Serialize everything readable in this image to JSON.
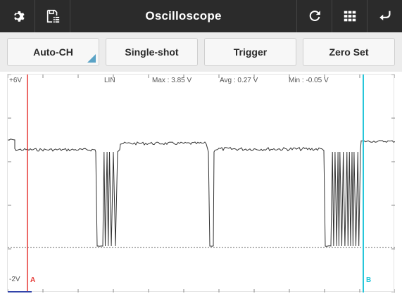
{
  "titlebar": {
    "title": "Oscilloscope",
    "left_icons": [
      "gear-icon",
      "save-list-icon"
    ],
    "right_icons": [
      "refresh-icon",
      "grid-icon",
      "back-arrow-icon"
    ]
  },
  "toolbar": {
    "buttons": [
      {
        "label": "Auto-CH",
        "has_dropdown_corner": true
      },
      {
        "label": "Single-shot"
      },
      {
        "label": "Trigger"
      },
      {
        "label": "Zero Set"
      }
    ]
  },
  "scope": {
    "top_label": "+6V",
    "bottom_label": "-2V",
    "mode_label": "LIN",
    "max_label": "Max : 3.85 V",
    "avg_label": "Avg : 0.27 V",
    "min_label": "Min : -0.05 V",
    "cursor_a": {
      "label": "A",
      "color": "#e53935"
    },
    "cursor_b": {
      "label": "B",
      "color": "#26c6da"
    }
  },
  "colors": {
    "titlebar_bg": "#2b2b2b",
    "accent": "#5aa3c6",
    "trace": "#333333"
  }
}
